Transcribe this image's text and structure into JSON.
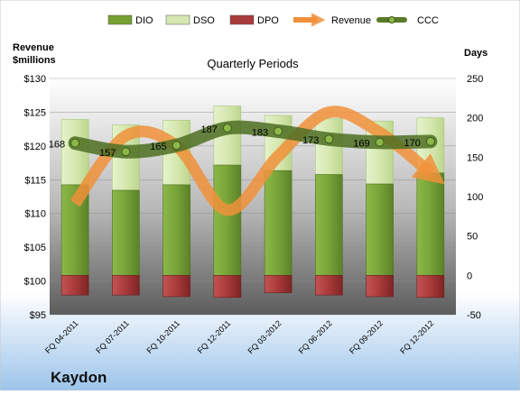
{
  "chart_data": {
    "type": "bar",
    "title": "Quarterly Periods",
    "company": "Kaydon",
    "left_axis_label_line1": "Revenue",
    "left_axis_label_line2": "$millions",
    "right_axis_label": "Days",
    "left_ticks": [
      "$95",
      "$100",
      "$105",
      "$110",
      "$115",
      "$120",
      "$125",
      "$130"
    ],
    "right_ticks": [
      "-50",
      "0",
      "50",
      "100",
      "150",
      "200",
      "250"
    ],
    "ylim_left": [
      95,
      130
    ],
    "ylim_right": [
      -50,
      250
    ],
    "grid": true,
    "legend_position": "top",
    "legend": [
      {
        "name": "DIO",
        "kind": "bar",
        "color": "#76a030"
      },
      {
        "name": "DSO",
        "kind": "bar",
        "color": "#d6e8b0"
      },
      {
        "name": "DPO",
        "kind": "bar",
        "color": "#a83a3a"
      },
      {
        "name": "Revenue",
        "kind": "arrow",
        "color": "#f0903a"
      },
      {
        "name": "CCC",
        "kind": "line",
        "color": "#5a7a2a"
      }
    ],
    "categories": [
      "FQ 04-2011",
      "FQ 07-2011",
      "FQ 10-2011",
      "FQ 12-2011",
      "FQ 03-2012",
      "FQ 06-2012",
      "FQ 09-2012",
      "FQ 12-2012"
    ],
    "series": [
      {
        "name": "DIO",
        "axis": "right",
        "values": [
          115,
          108,
          115,
          140,
          133,
          128,
          116,
          130
        ]
      },
      {
        "name": "DSO",
        "axis": "right",
        "values": [
          83,
          83,
          82,
          75,
          70,
          71,
          80,
          70
        ]
      },
      {
        "name": "DPO",
        "axis": "right",
        "values": [
          -25,
          -25,
          -27,
          -28,
          -22,
          -25,
          -27,
          -28
        ]
      },
      {
        "name": "Revenue",
        "axis": "left",
        "values": [
          111.5,
          121.5,
          120,
          110.5,
          118.5,
          125,
          122,
          116
        ]
      },
      {
        "name": "CCC",
        "axis": "right",
        "values": [
          168,
          157,
          165,
          187,
          183,
          173,
          169,
          170
        ]
      }
    ],
    "ccc_labels": [
      "168",
      "157",
      "165",
      "187",
      "183",
      "173",
      "169",
      "170"
    ]
  }
}
